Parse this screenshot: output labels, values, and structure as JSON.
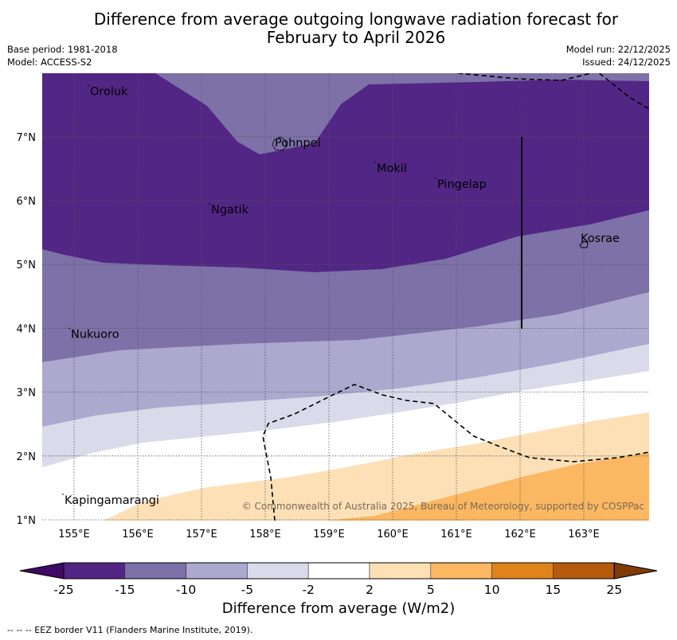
{
  "title_line1": "Difference from average outgoing longwave radiation forecast for",
  "title_line2": "February to April 2026",
  "meta_left": [
    "Base period: 1981-2018",
    "Model: ACCESS-S2"
  ],
  "meta_right": [
    "Model run: 22/12/2025",
    "Issued: 24/12/2025"
  ],
  "copyright": "© Commonwealth of Australia 2025, Bureau of Meteorology, supported by COSPPac",
  "footer_note": "-- -- -- EEZ border V11 (Flanders Marine Institute, 2019).",
  "map": {
    "lon_range": [
      154.5,
      164.0
    ],
    "lat_range": [
      1.0,
      8.0
    ],
    "lon_ticks": [
      "155°E",
      "156°E",
      "157°E",
      "158°E",
      "159°E",
      "160°E",
      "161°E",
      "162°E",
      "163°E"
    ],
    "lon_values": [
      155,
      156,
      157,
      158,
      159,
      160,
      161,
      162,
      163
    ],
    "lat_ticks": [
      "1°N",
      "2°N",
      "3°N",
      "4°N",
      "5°N",
      "6°N",
      "7°N"
    ],
    "lat_values": [
      1,
      2,
      3,
      4,
      5,
      6,
      7
    ],
    "places": [
      {
        "name": "Oroluk",
        "lon": 155.25,
        "lat": 7.65
      },
      {
        "name": "Pohnpei",
        "lon": 158.15,
        "lat": 6.85
      },
      {
        "name": "Mokil",
        "lon": 159.75,
        "lat": 6.45
      },
      {
        "name": "Pingelap",
        "lon": 160.7,
        "lat": 6.2
      },
      {
        "name": "Ngatik",
        "lon": 157.15,
        "lat": 5.8
      },
      {
        "name": "Kosrae",
        "lon": 162.95,
        "lat": 5.35
      },
      {
        "name": "Nukuoro",
        "lon": 154.95,
        "lat": 3.85
      },
      {
        "name": "Kapingamarangi",
        "lon": 154.85,
        "lat": 1.25
      }
    ]
  },
  "colorbar": {
    "label": "Difference from average (W/m2)",
    "ticks": [
      "-25",
      "-15",
      "-10",
      "-5",
      "-2",
      "2",
      "5",
      "10",
      "15",
      "25"
    ],
    "colors": [
      "#3f0a63",
      "#522685",
      "#7d71a8",
      "#ada8ce",
      "#dadaea",
      "#ffffff",
      "#fde0b6",
      "#fbb762",
      "#e1831b",
      "#b45a0d",
      "#7f3b08"
    ]
  }
}
